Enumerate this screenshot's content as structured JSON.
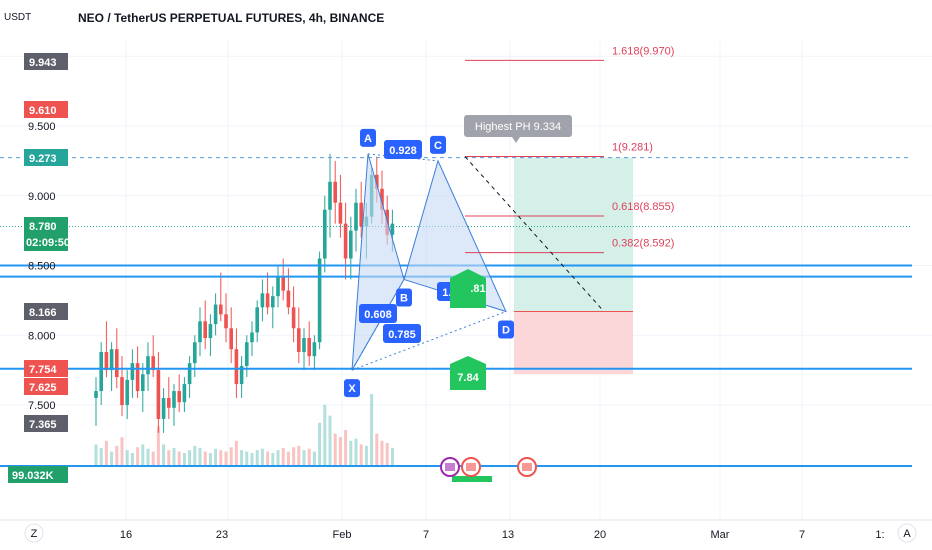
{
  "header": {
    "title": "NEO / TetherUS PERPETUAL FUTURES, 4h, BINANCE",
    "unit": "USDT"
  },
  "colors": {
    "up": "#26a69a",
    "down": "#ef5350",
    "pattern_line": "#3d7fd9",
    "pattern_fill": "#c6d8f5",
    "level_line": "#2196f3",
    "fib_line": "#e0405b",
    "long_target_zone": "#cfeee6",
    "long_stop_zone": "#fbd3d6",
    "green_badge": "#22c55e",
    "blue_label": "#2962ff"
  },
  "y_axis": {
    "ticks": [
      "10.000",
      "9.500",
      "9.000",
      "8.500",
      "8.000",
      "7.500"
    ],
    "badges": [
      {
        "text": "9.943",
        "color": "#5d606b"
      },
      {
        "text": "9.610",
        "color": "#ef5350"
      },
      {
        "text": "9.273",
        "color": "#26a69a"
      },
      {
        "text": "8.780",
        "sub": "02:09:50",
        "color": "#22a06b"
      },
      {
        "text": "8.166",
        "color": "#5d606b"
      },
      {
        "text": "7.754",
        "color": "#ef5350"
      },
      {
        "text": "7.625",
        "color": "#ef5350"
      },
      {
        "text": "7.365",
        "color": "#5d606b"
      },
      {
        "text": "99.032K",
        "color": "#22a06b"
      }
    ]
  },
  "x_axis": {
    "ticks": [
      "16",
      "23",
      "Feb",
      "7",
      "13",
      "20",
      "Mar",
      "7",
      "1:"
    ],
    "buttons": [
      "Z",
      "A"
    ]
  },
  "chart_data": {
    "type": "candlestick",
    "title": "NEO / TetherUS PERPETUAL FUTURES, 4h, BINANCE",
    "ylabel": "USDT",
    "ylim": [
      7.2,
      10.0
    ],
    "price_labels": {
      "high_label": 9.943,
      "prev_high": 9.61,
      "C_level": 9.273,
      "last_price": 8.78,
      "countdown": "02:09:50",
      "pattern_level": 8.166,
      "stop_level": 7.754,
      "low_label": 7.625,
      "lower_label": 7.365,
      "volume": "99.032K"
    },
    "harmonic_pattern": {
      "points": [
        {
          "label": "X",
          "price": 7.75
        },
        {
          "label": "A",
          "price": 9.3
        },
        {
          "label": "B",
          "price": 8.4
        },
        {
          "label": "C",
          "price": 9.25
        },
        {
          "label": "D",
          "price": 8.17
        }
      ],
      "ratios": [
        "0.608",
        "0.928",
        "1.312",
        "0.785"
      ]
    },
    "fib_levels": [
      {
        "ratio": "1.618",
        "price": 9.97,
        "text": "1.618(9.970)"
      },
      {
        "ratio": "1",
        "price": 9.281,
        "text": "1(9.281)"
      },
      {
        "ratio": "0.618",
        "price": 8.855,
        "text": "0.618(8.855)"
      },
      {
        "ratio": "0.382",
        "price": 8.592,
        "text": "0.382(8.592)"
      }
    ],
    "highest_ph": "Highest PH 9.334",
    "horizontal_levels": [
      8.5,
      8.42,
      7.76,
      9.273
    ],
    "badges": [
      "7.84",
      ".81"
    ],
    "position": {
      "entry": 8.17,
      "target": 9.273,
      "stop": 7.72
    },
    "candles": [
      [
        7.55,
        7.7,
        7.35,
        7.6
      ],
      [
        7.6,
        7.95,
        7.5,
        7.88
      ],
      [
        7.88,
        8.1,
        7.7,
        7.75
      ],
      [
        7.75,
        7.95,
        7.6,
        7.9
      ],
      [
        7.9,
        8.05,
        7.62,
        7.7
      ],
      [
        7.7,
        7.85,
        7.42,
        7.5
      ],
      [
        7.5,
        7.75,
        7.4,
        7.68
      ],
      [
        7.68,
        7.9,
        7.55,
        7.8
      ],
      [
        7.8,
        7.92,
        7.55,
        7.6
      ],
      [
        7.6,
        7.8,
        7.45,
        7.72
      ],
      [
        7.72,
        7.95,
        7.6,
        7.85
      ],
      [
        7.85,
        8.0,
        7.7,
        7.75
      ],
      [
        7.75,
        7.88,
        7.3,
        7.4
      ],
      [
        7.4,
        7.62,
        7.3,
        7.55
      ],
      [
        7.55,
        7.7,
        7.4,
        7.48
      ],
      [
        7.48,
        7.65,
        7.35,
        7.6
      ],
      [
        7.6,
        7.72,
        7.45,
        7.52
      ],
      [
        7.52,
        7.7,
        7.45,
        7.65
      ],
      [
        7.65,
        7.85,
        7.55,
        7.8
      ],
      [
        7.8,
        8.0,
        7.7,
        7.95
      ],
      [
        7.95,
        8.2,
        7.85,
        8.1
      ],
      [
        8.1,
        8.25,
        7.9,
        7.98
      ],
      [
        7.98,
        8.15,
        7.85,
        8.08
      ],
      [
        8.08,
        8.3,
        8.0,
        8.22
      ],
      [
        8.22,
        8.45,
        8.1,
        8.15
      ],
      [
        8.15,
        8.3,
        7.95,
        8.05
      ],
      [
        8.05,
        8.2,
        7.8,
        7.9
      ],
      [
        7.9,
        8.05,
        7.55,
        7.65
      ],
      [
        7.65,
        7.85,
        7.55,
        7.78
      ],
      [
        7.78,
        8.0,
        7.7,
        7.95
      ],
      [
        7.95,
        8.1,
        7.85,
        8.02
      ],
      [
        8.02,
        8.25,
        7.95,
        8.2
      ],
      [
        8.2,
        8.4,
        8.1,
        8.3
      ],
      [
        8.3,
        8.45,
        8.15,
        8.2
      ],
      [
        8.2,
        8.35,
        8.05,
        8.28
      ],
      [
        8.28,
        8.5,
        8.2,
        8.42
      ],
      [
        8.42,
        8.55,
        8.25,
        8.32
      ],
      [
        8.32,
        8.48,
        8.15,
        8.2
      ],
      [
        8.2,
        8.35,
        7.95,
        8.05
      ],
      [
        8.05,
        8.2,
        7.8,
        7.88
      ],
      [
        7.88,
        8.05,
        7.75,
        7.98
      ],
      [
        7.98,
        8.1,
        7.78,
        7.85
      ],
      [
        7.85,
        8.0,
        7.75,
        7.95
      ],
      [
        7.95,
        8.6,
        7.9,
        8.55
      ],
      [
        8.55,
        9.0,
        8.45,
        8.9
      ],
      [
        8.9,
        9.3,
        8.7,
        9.1
      ],
      [
        9.1,
        9.25,
        8.8,
        8.95
      ],
      [
        8.95,
        9.15,
        8.7,
        8.8
      ],
      [
        8.8,
        8.95,
        8.4,
        8.55
      ],
      [
        8.55,
        8.85,
        8.4,
        8.75
      ],
      [
        8.75,
        9.05,
        8.6,
        8.95
      ],
      [
        8.95,
        9.1,
        8.7,
        8.78
      ],
      [
        8.78,
        8.95,
        8.55,
        8.85
      ],
      [
        8.85,
        9.2,
        8.8,
        9.15
      ],
      [
        9.15,
        9.28,
        8.95,
        9.05
      ],
      [
        9.05,
        9.18,
        8.8,
        8.9
      ],
      [
        8.9,
        9.0,
        8.65,
        8.72
      ],
      [
        8.72,
        8.9,
        8.6,
        8.8
      ]
    ],
    "volumes": [
      0.3,
      0.25,
      0.35,
      0.2,
      0.28,
      0.4,
      0.22,
      0.18,
      0.26,
      0.3,
      0.24,
      0.2,
      0.55,
      0.3,
      0.22,
      0.25,
      0.2,
      0.18,
      0.22,
      0.28,
      0.25,
      0.2,
      0.18,
      0.24,
      0.22,
      0.2,
      0.26,
      0.35,
      0.22,
      0.2,
      0.18,
      0.22,
      0.24,
      0.2,
      0.18,
      0.22,
      0.25,
      0.2,
      0.26,
      0.28,
      0.22,
      0.24,
      0.2,
      0.6,
      0.85,
      0.7,
      0.45,
      0.4,
      0.5,
      0.35,
      0.38,
      0.3,
      0.28,
      1.0,
      0.45,
      0.35,
      0.32,
      0.25
    ]
  }
}
